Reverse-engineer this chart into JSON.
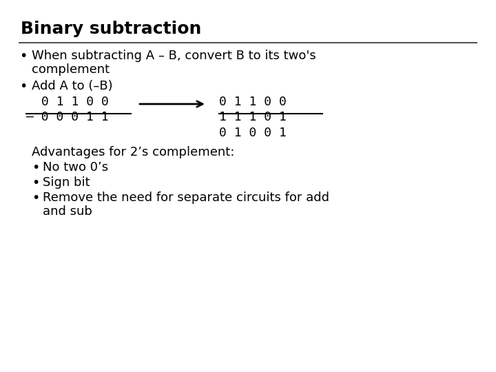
{
  "title": "Binary subtraction",
  "background_color": "#ffffff",
  "text_color": "#000000",
  "title_fontsize": 18,
  "body_fontsize": 13,
  "mono_fontsize": 13,
  "bullet1_line1": "When subtracting A – B, convert B to its two's",
  "bullet1_line2": "complement",
  "bullet2": "Add A to (–B)",
  "left_row1": "0 1 1 0 0",
  "left_row2": "– 0 0 0 1 1",
  "right_row1": "0 1 1 0 0",
  "right_row2": "1 1 1 0 1",
  "right_row3": "0 1 0 0 1",
  "advantages_label": "Advantages for 2’s complement:",
  "adv1": "No two 0’s",
  "adv2": "Sign bit",
  "adv3_line1": "Remove the need for separate circuits for add",
  "adv3_line2": "and sub"
}
